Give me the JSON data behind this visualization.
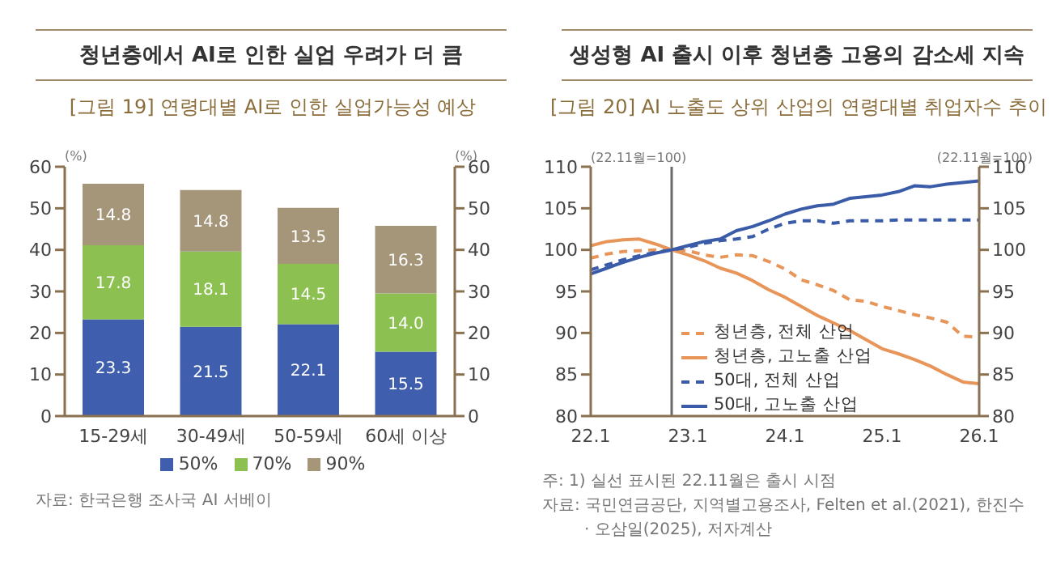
{
  "chart_data": [
    {
      "type": "bar",
      "title": "청년층에서 AI로 인한 실업 우려가 더 큼",
      "subtitle": "[그림 19] 연령대별 AI로 인한 실업가능성 예상",
      "ylabel": "(%)",
      "y2label": "(%)",
      "categories": [
        "15-29세",
        "30-49세",
        "50-59세",
        "60세 이상"
      ],
      "stacked": true,
      "series": [
        {
          "name": "50%",
          "color": "#3f5fae",
          "values": [
            23.3,
            21.5,
            22.1,
            15.5
          ],
          "value_labels": [
            "23.3",
            "21.5",
            "22.1",
            "15.5"
          ]
        },
        {
          "name": "70%",
          "color": "#8cc152",
          "values": [
            17.8,
            18.1,
            14.5,
            14.0
          ],
          "value_labels": [
            "17.8",
            "18.1",
            "14.5",
            "14.0"
          ]
        },
        {
          "name": "90%",
          "color": "#a5967a",
          "values": [
            14.8,
            14.8,
            13.5,
            16.3
          ],
          "value_labels": [
            "14.8",
            "14.8",
            "13.5",
            "16.3"
          ]
        }
      ],
      "ylim": [
        0,
        60
      ],
      "yticks": [
        0,
        10,
        20,
        30,
        40,
        50,
        60
      ],
      "y2lim": [
        0,
        60
      ],
      "y2ticks": [
        0,
        10,
        20,
        30,
        40,
        50,
        60
      ],
      "legend": "bottom",
      "grid": false,
      "annotations": [
        "자료: 한국은행 조사국 AI 서베이"
      ]
    },
    {
      "type": "line",
      "title": "생성형 AI 출시 이후 청년층 고용의 감소세 지속",
      "subtitle": "[그림 20] AI 노출도 상위 산업의 연령대별 취업자수 추이",
      "ylabel": "(22.11월=100)",
      "y2label": "(22.11월=100)",
      "x": [
        "2022-01",
        "2022-03",
        "2022-05",
        "2022-07",
        "2022-09",
        "2022-11",
        "2023-01",
        "2023-03",
        "2023-05",
        "2023-07",
        "2023-09",
        "2023-11",
        "2024-01",
        "2024-03",
        "2024-05",
        "2024-07",
        "2024-09",
        "2024-11",
        "2025-01",
        "2025-03",
        "2025-05",
        "2025-07",
        "2025-09",
        "2025-11",
        "2026-01"
      ],
      "series": [
        {
          "name": "청년층, 전체 산업",
          "color": "#e8955a",
          "line_style": "dashed",
          "values": [
            99.0,
            99.5,
            99.8,
            99.9,
            100,
            100,
            99.9,
            99.4,
            99.1,
            99.4,
            99.3,
            98.6,
            97.7,
            96.4,
            95.8,
            95.1,
            94.0,
            93.8,
            93.2,
            92.7,
            92.2,
            91.8,
            91.3,
            89.6,
            89.5
          ]
        },
        {
          "name": "청년층, 고노출 산업",
          "color": "#e8955a",
          "line_style": "solid",
          "values": [
            100.5,
            101,
            101.2,
            101.3,
            100.7,
            100,
            99.4,
            98.7,
            97.8,
            97.2,
            96.3,
            95.2,
            94.3,
            93.2,
            92.1,
            91.2,
            90.3,
            89.2,
            88.1,
            87.5,
            86.8,
            86.0,
            85.0,
            84.1,
            83.9
          ]
        },
        {
          "name": "50대, 전체 산업",
          "color": "#3a5ba8",
          "line_style": "dashed",
          "values": [
            97.6,
            98.2,
            98.8,
            99.3,
            99.7,
            100,
            100.3,
            100.8,
            101.1,
            101.3,
            101.6,
            102.5,
            103.2,
            103.5,
            103.5,
            103.2,
            103.5,
            103.5,
            103.5,
            103.6,
            103.6,
            103.6,
            103.6,
            103.6,
            103.6
          ]
        },
        {
          "name": "50대, 고노출 산업",
          "color": "#3a5ba8",
          "line_style": "solid",
          "values": [
            97.1,
            97.8,
            98.5,
            99.1,
            99.6,
            100,
            100.5,
            101,
            101.3,
            102.3,
            102.8,
            103.5,
            104.3,
            104.9,
            105.3,
            105.5,
            106.2,
            106.4,
            106.6,
            107,
            107.7,
            107.6,
            107.9,
            108.1,
            108.3
          ]
        }
      ],
      "xlim": [
        "2022-01",
        "2026-01"
      ],
      "xticks": [
        {
          "value": "2022-01",
          "label": "22.1"
        },
        {
          "value": "2023-01",
          "label": "23.1"
        },
        {
          "value": "2024-01",
          "label": "24.1"
        },
        {
          "value": "2025-01",
          "label": "25.1"
        },
        {
          "value": "2026-01",
          "label": "26.1"
        }
      ],
      "ylim": [
        80,
        110
      ],
      "yticks": [
        80,
        85,
        90,
        95,
        100,
        105,
        110
      ],
      "y2lim": [
        80,
        110
      ],
      "y2ticks": [
        80,
        85,
        90,
        95,
        100,
        105,
        110
      ],
      "ref_lines": [
        {
          "axis": "x",
          "value": "2022-11",
          "color": "#6b6b6b"
        }
      ],
      "legend": "bottom left",
      "grid": false,
      "marker": "none",
      "annotations": [
        "주: 1) 실선 표시된 22.11월은 출시 시점",
        "자료: 국민연금공단, 지역별고용조사, Felten et al.(2021), 한진수 · 오삼일(2025), 저자계산"
      ]
    }
  ]
}
